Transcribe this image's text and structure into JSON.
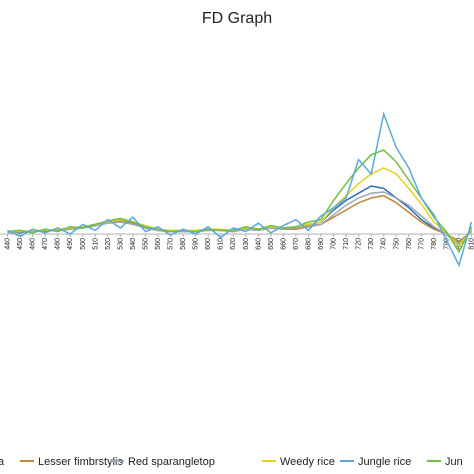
{
  "chart_data": {
    "type": "line",
    "title": "FD Graph",
    "x": [
      440,
      450,
      460,
      470,
      480,
      490,
      500,
      510,
      520,
      530,
      540,
      550,
      560,
      570,
      580,
      590,
      600,
      610,
      620,
      630,
      640,
      650,
      660,
      670,
      680,
      690,
      700,
      710,
      720,
      730,
      740,
      750,
      760,
      770,
      780,
      790,
      800,
      810
    ],
    "xlim": [
      434,
      812
    ],
    "xticks": [
      440,
      450,
      460,
      470,
      480,
      490,
      500,
      510,
      520,
      530,
      540,
      550,
      560,
      570,
      580,
      590,
      600,
      610,
      620,
      630,
      640,
      650,
      660,
      670,
      680,
      690,
      700,
      710,
      720,
      730,
      740,
      750,
      760,
      770,
      780,
      790,
      800,
      810
    ],
    "ylim": [
      -0.3,
      1.05
    ],
    "series": [
      {
        "name": "a",
        "color": "#2f6db5",
        "values": [
          0.02,
          0.01,
          0.03,
          0.02,
          0.04,
          0.04,
          0.06,
          0.08,
          0.1,
          0.11,
          0.09,
          0.05,
          0.03,
          0.02,
          0.03,
          0.02,
          0.04,
          0.03,
          0.03,
          0.05,
          0.04,
          0.06,
          0.04,
          0.05,
          0.08,
          0.1,
          0.2,
          0.28,
          0.34,
          0.4,
          0.38,
          0.3,
          0.22,
          0.12,
          0.05,
          0.0,
          -0.1,
          0.03
        ]
      },
      {
        "name": "Lesser fimbrstylis",
        "color": "#c0873a",
        "values": [
          0.02,
          0.02,
          0.02,
          0.03,
          0.03,
          0.04,
          0.05,
          0.07,
          0.09,
          0.11,
          0.09,
          0.05,
          0.03,
          0.02,
          0.02,
          0.02,
          0.03,
          0.03,
          0.02,
          0.04,
          0.03,
          0.05,
          0.04,
          0.04,
          0.06,
          0.08,
          0.14,
          0.2,
          0.26,
          0.3,
          0.32,
          0.26,
          0.18,
          0.1,
          0.04,
          0.0,
          -0.06,
          0.02
        ]
      },
      {
        "name": "Red sparangletop",
        "color": "#9aa5b8",
        "values": [
          0.01,
          0.02,
          0.02,
          0.03,
          0.03,
          0.04,
          0.05,
          0.07,
          0.09,
          0.1,
          0.08,
          0.05,
          0.03,
          0.02,
          0.02,
          0.02,
          0.03,
          0.03,
          0.02,
          0.04,
          0.03,
          0.05,
          0.04,
          0.05,
          0.07,
          0.08,
          0.16,
          0.24,
          0.3,
          0.34,
          0.35,
          0.3,
          0.24,
          0.15,
          0.06,
          0.0,
          -0.08,
          0.03
        ]
      },
      {
        "name": "Weedy rice",
        "color": "#e3d21a",
        "values": [
          0.02,
          0.02,
          0.03,
          0.03,
          0.04,
          0.05,
          0.06,
          0.08,
          0.1,
          0.12,
          0.1,
          0.07,
          0.04,
          0.03,
          0.03,
          0.03,
          0.04,
          0.04,
          0.03,
          0.05,
          0.04,
          0.06,
          0.05,
          0.06,
          0.08,
          0.1,
          0.22,
          0.32,
          0.42,
          0.5,
          0.55,
          0.5,
          0.38,
          0.25,
          0.1,
          0.01,
          -0.1,
          0.04
        ]
      },
      {
        "name": "Jungle rice",
        "color": "#5aa9dc",
        "values": [
          0.03,
          -0.02,
          0.04,
          0.01,
          0.05,
          0.0,
          0.08,
          0.03,
          0.12,
          0.05,
          0.14,
          0.02,
          0.06,
          -0.01,
          0.04,
          0.0,
          0.06,
          -0.03,
          0.05,
          0.02,
          0.09,
          0.01,
          0.07,
          0.12,
          0.03,
          0.15,
          0.22,
          0.3,
          0.62,
          0.5,
          1.0,
          0.72,
          0.55,
          0.3,
          0.16,
          -0.05,
          -0.26,
          0.1
        ]
      },
      {
        "name": "Jun",
        "color": "#6cbf3f",
        "values": [
          0.02,
          0.03,
          0.01,
          0.04,
          0.02,
          0.06,
          0.05,
          0.08,
          0.11,
          0.13,
          0.1,
          0.06,
          0.04,
          0.02,
          0.03,
          0.02,
          0.04,
          0.03,
          0.03,
          0.06,
          0.04,
          0.07,
          0.05,
          0.06,
          0.1,
          0.12,
          0.28,
          0.42,
          0.55,
          0.66,
          0.7,
          0.6,
          0.45,
          0.3,
          0.14,
          0.02,
          -0.15,
          0.06
        ]
      }
    ]
  }
}
